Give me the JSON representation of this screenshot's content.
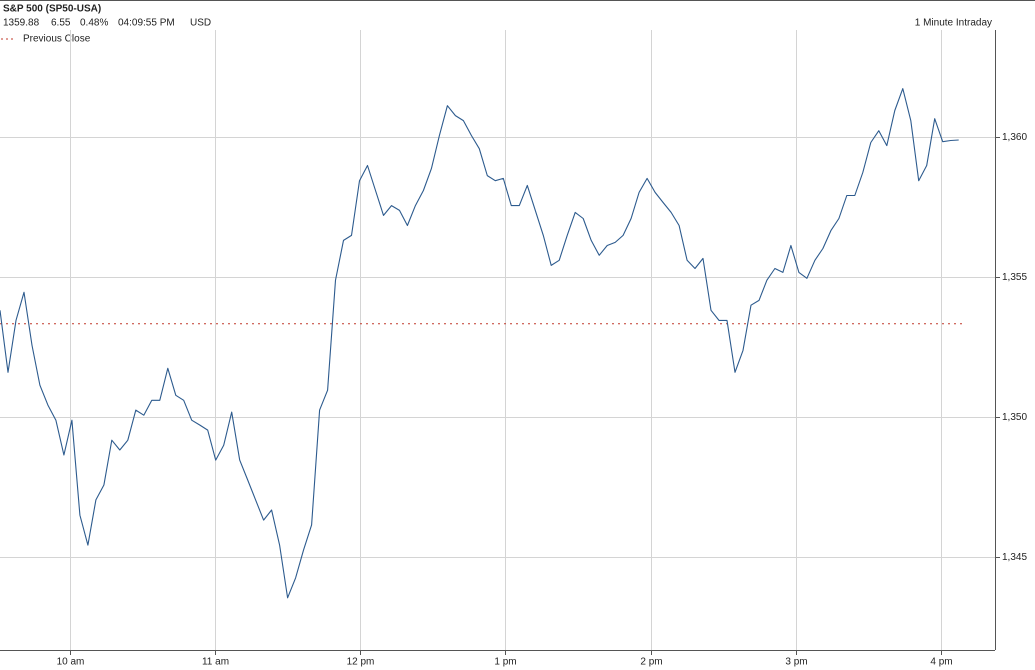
{
  "chart_data": {
    "type": "line",
    "title": "S&P 500 (SP50-USA)",
    "quote": [
      "1359.88",
      "6.55",
      "0.48%",
      "04:09:55 PM",
      "USD"
    ],
    "subtitle": "1 Minute Intraday",
    "x": [
      9.52,
      9.575,
      9.63,
      9.685,
      9.74,
      9.795,
      9.85,
      9.905,
      9.96,
      10.015,
      10.07,
      10.125,
      10.18,
      10.235,
      10.29,
      10.345,
      10.4,
      10.455,
      10.51,
      10.565,
      10.62,
      10.675,
      10.73,
      10.785,
      10.84,
      10.895,
      10.95,
      11.005,
      11.06,
      11.115,
      11.17,
      11.225,
      11.28,
      11.335,
      11.39,
      11.445,
      11.5,
      11.555,
      11.61,
      11.665,
      11.72,
      11.775,
      11.83,
      11.885,
      11.94,
      11.995,
      12.05,
      12.105,
      12.16,
      12.215,
      12.27,
      12.325,
      12.38,
      12.435,
      12.49,
      12.545,
      12.6,
      12.655,
      12.71,
      12.765,
      12.82,
      12.875,
      12.93,
      12.985,
      13.04,
      13.095,
      13.15,
      13.205,
      13.26,
      13.315,
      13.37,
      13.425,
      13.48,
      13.535,
      13.59,
      13.645,
      13.7,
      13.755,
      13.81,
      13.865,
      13.92,
      13.975,
      14.03,
      14.085,
      14.14,
      14.195,
      14.25,
      14.305,
      14.36,
      14.415,
      14.47,
      14.525,
      14.58,
      14.635,
      14.69,
      14.745,
      14.8,
      14.855,
      14.91,
      14.965,
      15.02,
      15.075,
      15.13,
      15.185,
      15.24,
      15.295,
      15.35,
      15.405,
      15.46,
      15.515,
      15.57,
      15.625,
      15.68,
      15.735,
      15.79,
      15.845,
      15.9,
      15.955,
      16.01,
      16.065,
      16.12
    ],
    "series": [
      {
        "color": "#2d5b8e",
        "values": [
          1353.81,
          1351.6,
          1353.45,
          1354.45,
          1352.56,
          1351.14,
          1350.43,
          1349.89,
          1348.65,
          1349.89,
          1346.51,
          1345.44,
          1347.05,
          1347.58,
          1349.18,
          1348.83,
          1349.18,
          1350.25,
          1350.07,
          1350.6,
          1350.6,
          1351.74,
          1350.78,
          1350.6,
          1349.89,
          1349.72,
          1349.54,
          1348.47,
          1349.0,
          1350.18,
          1348.47,
          1347.76,
          1347.05,
          1346.33,
          1346.69,
          1345.44,
          1343.56,
          1344.27,
          1345.27,
          1346.16,
          1350.25,
          1350.96,
          1354.88,
          1356.3,
          1356.48,
          1358.43,
          1358.97,
          1358.08,
          1357.19,
          1357.54,
          1357.37,
          1356.83,
          1357.54,
          1358.08,
          1358.86,
          1360.04,
          1361.1,
          1360.75,
          1360.57,
          1360.04,
          1359.57,
          1358.61,
          1358.43,
          1358.51,
          1357.54,
          1357.54,
          1358.26,
          1357.37,
          1356.48,
          1355.41,
          1355.59,
          1356.48,
          1357.3,
          1357.08,
          1356.3,
          1355.77,
          1356.12,
          1356.23,
          1356.48,
          1357.08,
          1358.01,
          1358.51,
          1358.01,
          1357.65,
          1357.3,
          1356.83,
          1355.59,
          1355.3,
          1355.66,
          1353.81,
          1353.45,
          1353.45,
          1351.6,
          1352.38,
          1353.99,
          1354.16,
          1354.88,
          1355.3,
          1355.16,
          1356.12,
          1355.16,
          1354.95,
          1355.59,
          1356.01,
          1356.65,
          1357.08,
          1357.9,
          1357.9,
          1358.72,
          1359.79,
          1360.21,
          1359.68,
          1360.93,
          1361.71,
          1360.57,
          1358.43,
          1358.97,
          1360.64,
          1359.82,
          1359.86,
          1359.88
        ]
      }
    ],
    "reference_line": {
      "name": "Previous Close",
      "value": 1353.33,
      "color": "#c0392b"
    },
    "xlim": [
      9.52,
      16.37
    ],
    "xticks": [
      {
        "value": 10,
        "label": "10 am"
      },
      {
        "value": 11,
        "label": "11 am"
      },
      {
        "value": 12,
        "label": "12 pm"
      },
      {
        "value": 13,
        "label": "1 pm"
      },
      {
        "value": 14,
        "label": "2 pm"
      },
      {
        "value": 15,
        "label": "3 pm"
      },
      {
        "value": 16,
        "label": "4 pm"
      }
    ],
    "ylim": [
      1341.7,
      1363.8
    ],
    "yticks": [
      {
        "value": 1345,
        "label": "1,345"
      },
      {
        "value": 1350,
        "label": "1,350"
      },
      {
        "value": 1355,
        "label": "1,355"
      },
      {
        "value": 1360,
        "label": "1,360"
      }
    ],
    "grid": true
  }
}
